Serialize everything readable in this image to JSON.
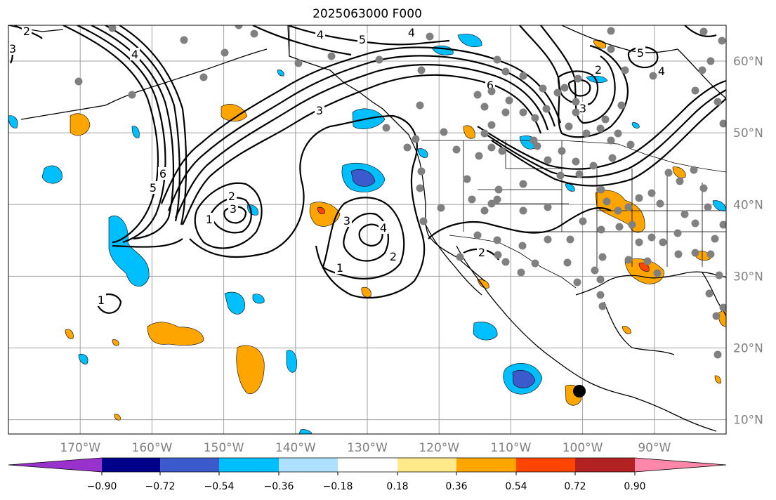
{
  "title": "2025063000 F000",
  "map": {
    "lon_range": [
      -180,
      -80
    ],
    "lat_range": [
      8,
      65
    ],
    "lat_labels": [
      {
        "lat": 60,
        "text": "60°N"
      },
      {
        "lat": 50,
        "text": "50°N"
      },
      {
        "lat": 40,
        "text": "40°N"
      },
      {
        "lat": 30,
        "text": "30°N"
      },
      {
        "lat": 20,
        "text": "20°N"
      },
      {
        "lat": 10,
        "text": "10°N"
      }
    ],
    "lon_labels": [
      {
        "lon": -170,
        "text": "170°W"
      },
      {
        "lon": -160,
        "text": "160°W"
      },
      {
        "lon": -150,
        "text": "150°W"
      },
      {
        "lon": -140,
        "text": "140°W"
      },
      {
        "lon": -130,
        "text": "130°W"
      },
      {
        "lon": -120,
        "text": "120°W"
      },
      {
        "lon": -110,
        "text": "110°W"
      },
      {
        "lon": -100,
        "text": "100°W"
      },
      {
        "lon": -90,
        "text": "90°W"
      }
    ],
    "grid": true,
    "contour_labels": [
      "1",
      "2",
      "3",
      "4",
      "5",
      "6"
    ]
  },
  "colorbar": {
    "ticks": [
      "−0.90",
      "−0.72",
      "−0.54",
      "−0.36",
      "−0.18",
      "0.18",
      "0.36",
      "0.54",
      "0.72",
      "0.90"
    ],
    "colors": [
      "#9932cc",
      "#00008b",
      "#3b5bcc",
      "#00bfff",
      "#aee1ff",
      "#ffffff",
      "#ffe98a",
      "#ffa500",
      "#ff4500",
      "#b22222",
      "#ff88aa"
    ]
  },
  "colors": {
    "coast": "#000000",
    "grid": "#a0a0a0",
    "station_dot": "#808080",
    "marker": "#000000"
  }
}
